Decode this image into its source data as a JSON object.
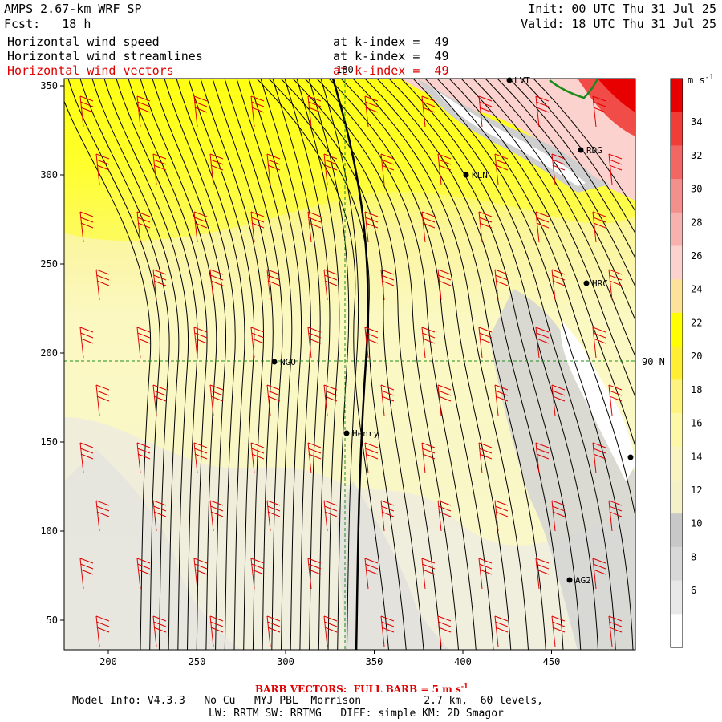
{
  "header": {
    "model_title": "AMPS 2.67-km WRF SP",
    "forecast": "Fcst:   18 h",
    "init": "Init: 00 UTC Thu 31 Jul 25",
    "valid": "Valid: 18 UTC Thu 31 Jul 25",
    "fields": [
      {
        "name": "Horizontal wind speed",
        "level": "at k-index =  49"
      },
      {
        "name": "Horizontal wind streamlines",
        "level": "at k-index =  49"
      },
      {
        "name": "Horizontal wind vectors",
        "level": "at k-index =  49"
      }
    ]
  },
  "map": {
    "x_ticks": [
      "200",
      "250",
      "300",
      "350",
      "400",
      "450"
    ],
    "y_ticks": [
      "350",
      "300",
      "250",
      "200",
      "150",
      "100",
      "50"
    ],
    "meridian_label": "180",
    "parallel_label": "90 N",
    "stations": [
      {
        "name": "LVT"
      },
      {
        "name": "RDG"
      },
      {
        "name": "KLN"
      },
      {
        "name": "HRC"
      },
      {
        "name": "NGO"
      },
      {
        "name": "Henry"
      },
      {
        "name": "AG2"
      },
      {
        "name": ""
      }
    ],
    "coastline_color": "#1a8a1a",
    "barb_color": "#e00000"
  },
  "colorbar": {
    "unit": "m s",
    "unit_exp": "-1",
    "labels": [
      "34",
      "32",
      "30",
      "28",
      "26",
      "24",
      "22",
      "20",
      "18",
      "16",
      "14",
      "12",
      "10",
      "8",
      "6"
    ],
    "colors": [
      "#ffffff",
      "#e8e8e8",
      "#d8d8d8",
      "#c8c8c8",
      "#f4f1c8",
      "#f8f5c0",
      "#fcf8a8",
      "#fff380",
      "#ffee33",
      "#ffff00",
      "#ffe29a",
      "#fbd2cd",
      "#f7b2b0",
      "#f38f8d",
      "#f26763",
      "#ef3d38",
      "#e80000"
    ]
  },
  "footer": {
    "barb_vectors": "BARB VECTORS:  FULL BARB = 5 m s",
    "barb_exp": "-1",
    "model_info": "Model Info: V4.3.3   No Cu   MYJ PBL  Morrison          2.7 km,  60 levels,",
    "physics": "LW: RRTM SW: RRTMG   DIFF: simple KM: 2D Smagor"
  }
}
